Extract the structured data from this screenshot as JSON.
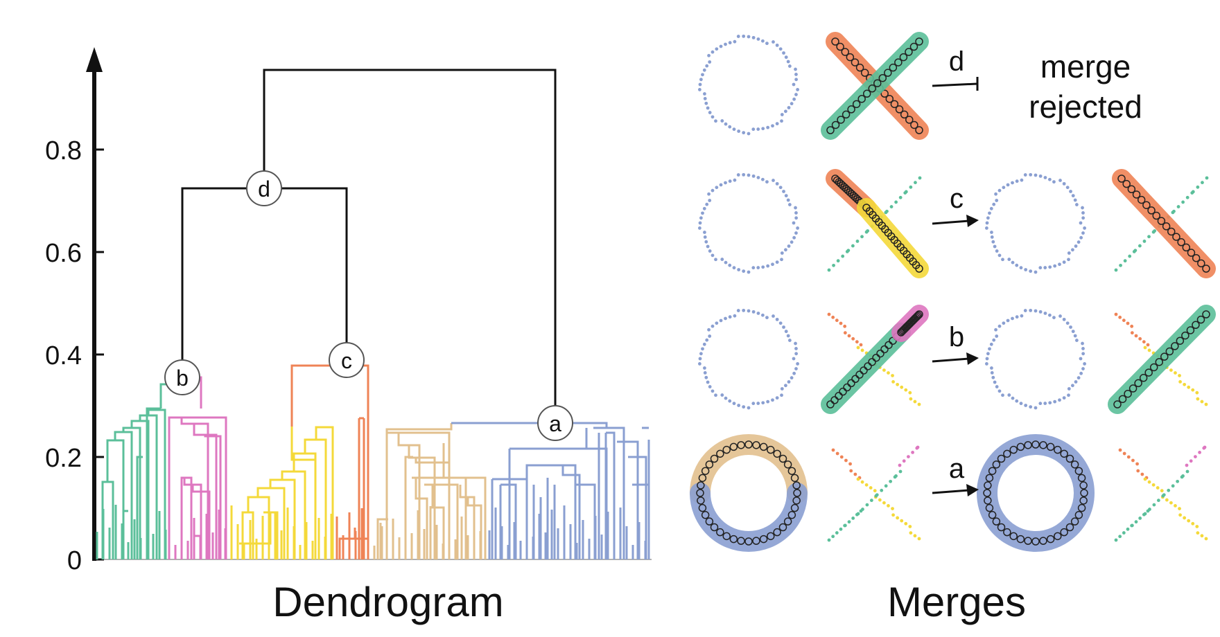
{
  "panels": {
    "dendrogram_title": "Dendrogram",
    "merges_title": "Merges"
  },
  "axis": {
    "ticks": [
      "0",
      "0.2",
      "0.4",
      "0.6",
      "0.8"
    ]
  },
  "nodes": {
    "a": "a",
    "b": "b",
    "c": "c",
    "d": "d"
  },
  "merges": [
    {
      "label": "d",
      "result": [
        "merge",
        "rejected"
      ]
    },
    {
      "label": "c"
    },
    {
      "label": "b"
    },
    {
      "label": "a"
    }
  ],
  "colors": {
    "green": "#5bbf9a",
    "pink": "#de77c0",
    "yellow": "#f4d93a",
    "orange": "#ef8356",
    "tan": "#e2c08e",
    "blue": "#8a9fd1",
    "black": "#111111"
  }
}
